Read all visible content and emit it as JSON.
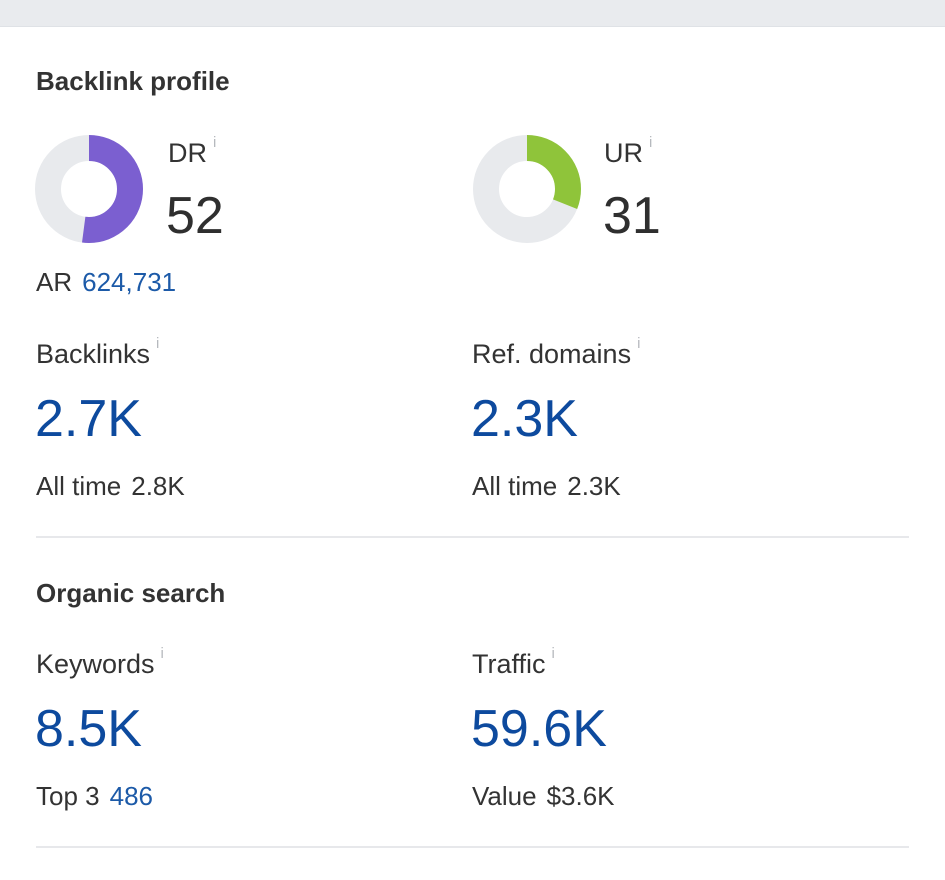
{
  "backlink_profile": {
    "title": "Backlink profile",
    "dr": {
      "label": "DR",
      "value": "52",
      "fraction": 0.52,
      "color": "#7b5fd0"
    },
    "ur": {
      "label": "UR",
      "value": "31",
      "fraction": 0.31,
      "color": "#8fc43a"
    },
    "ar": {
      "label": "AR",
      "value": "624,731"
    },
    "backlinks": {
      "label": "Backlinks",
      "value": "2.7K",
      "sub_label": "All time",
      "sub_value": "2.8K"
    },
    "ref_domains": {
      "label": "Ref. domains",
      "value": "2.3K",
      "sub_label": "All time",
      "sub_value": "2.3K"
    }
  },
  "organic_search": {
    "title": "Organic search",
    "keywords": {
      "label": "Keywords",
      "value": "8.5K",
      "sub_label": "Top 3",
      "sub_value": "486"
    },
    "traffic": {
      "label": "Traffic",
      "value": "59.6K",
      "sub_label": "Value",
      "sub_value": "$3.6K"
    }
  },
  "info_icon": "i",
  "colors": {
    "gauge_track": "#e8eaed",
    "link_blue": "#1c5aa8",
    "metric_blue": "#0d4a9e"
  }
}
